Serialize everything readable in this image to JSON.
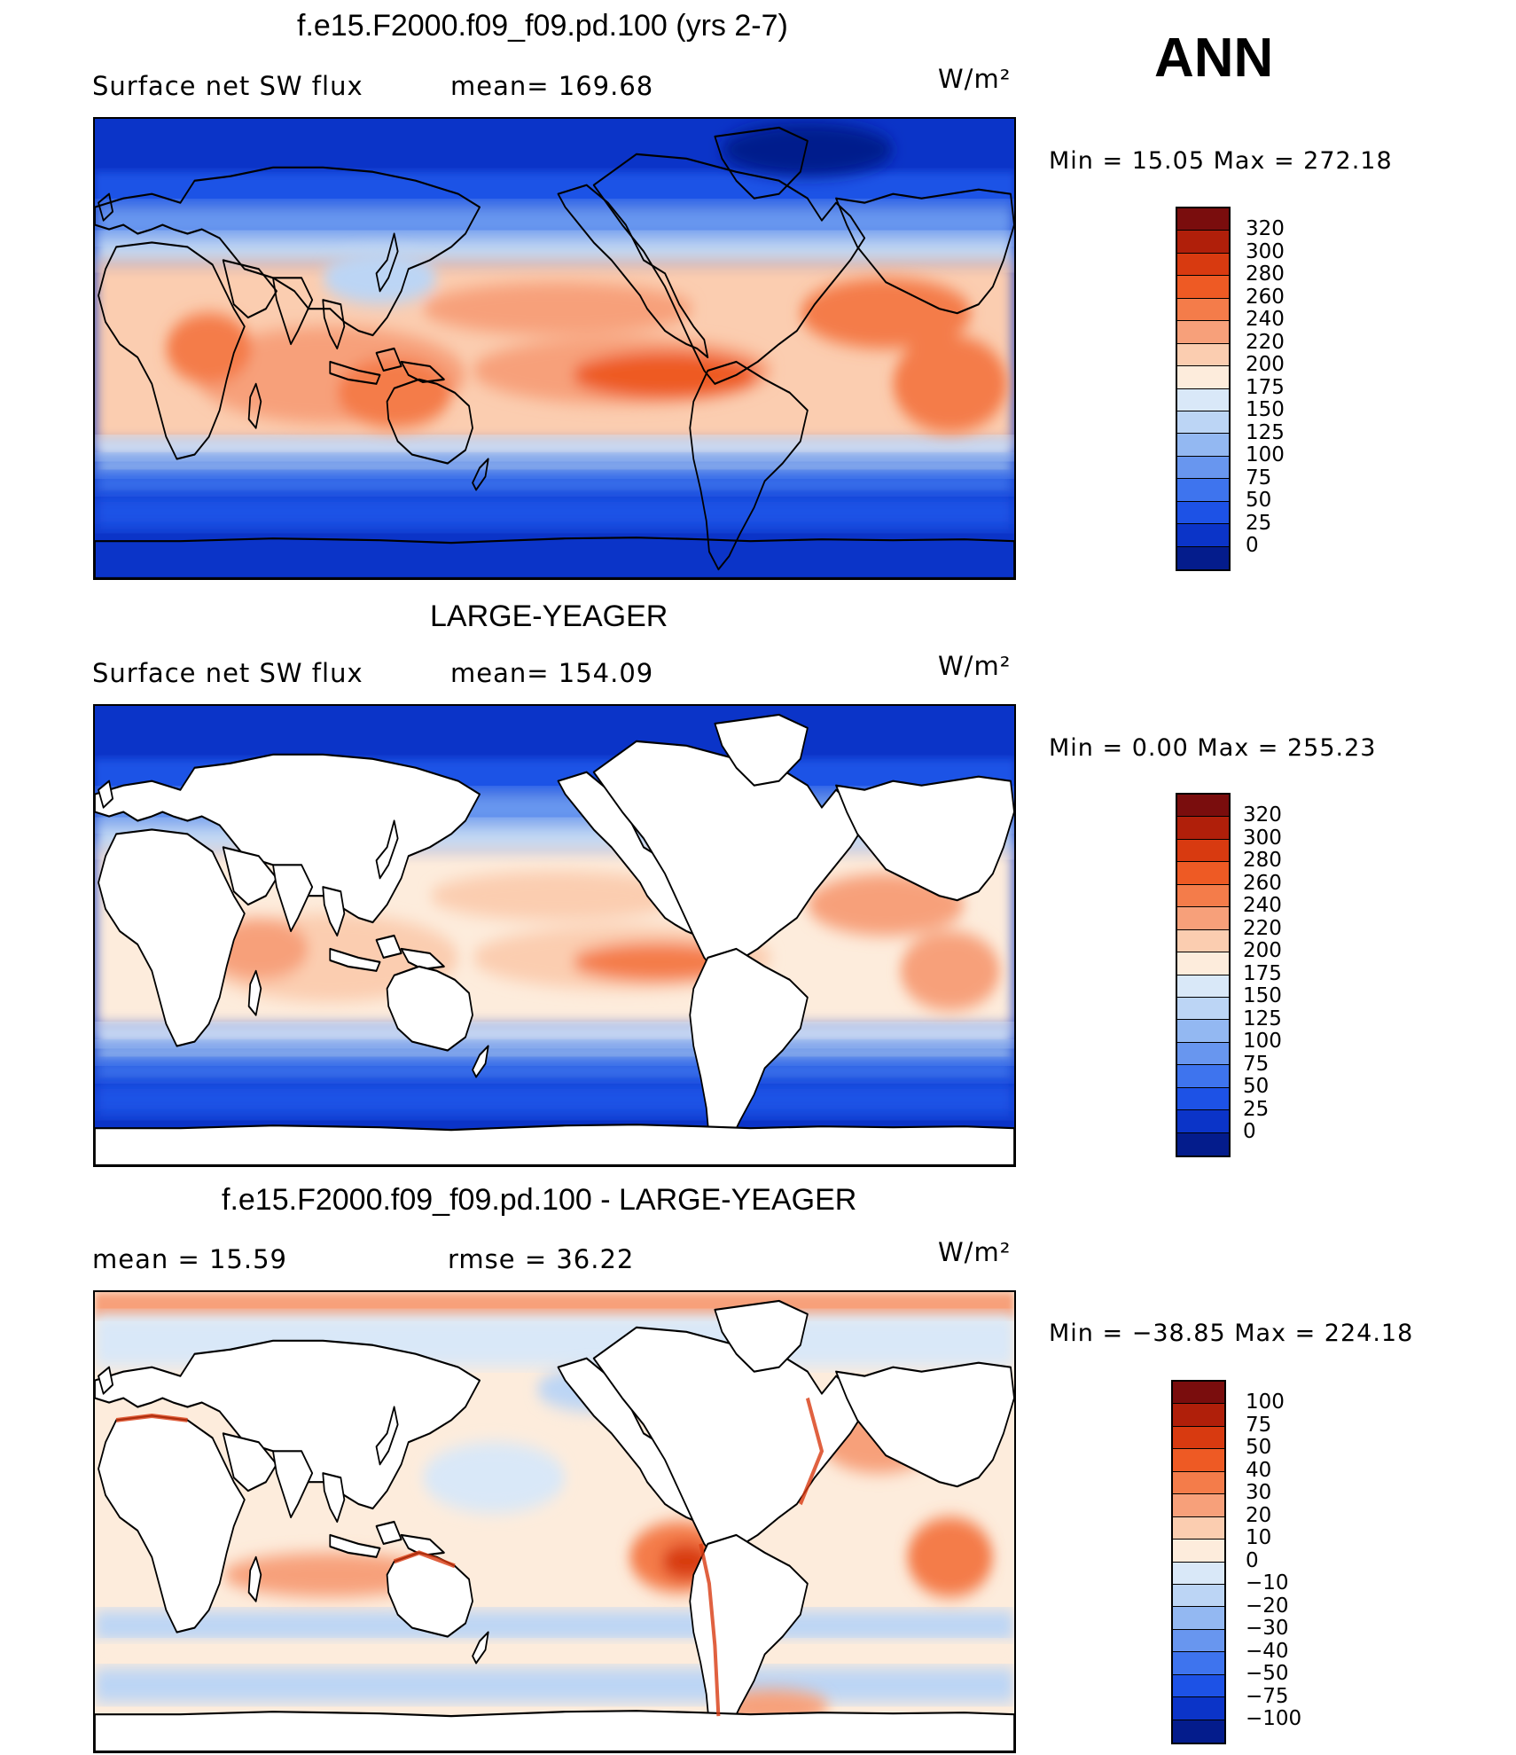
{
  "figure_label": "ANN",
  "panels": [
    {
      "title": "f.e15.F2000.f09_f09.pd.100 (yrs 2-7)",
      "left_label": "Surface net SW flux",
      "stat_label": "mean=  169.68",
      "units": "W/m²",
      "minmax": "Min  =    15.05  Max  =  272.18",
      "colorbar": {
        "labels": [
          "320",
          "300",
          "280",
          "260",
          "240",
          "220",
          "200",
          "175",
          "150",
          "125",
          "100",
          "75",
          "50",
          "25",
          "0"
        ],
        "colors": [
          "#7a0d0d",
          "#b01f0a",
          "#d83a10",
          "#ee5a24",
          "#f47c4a",
          "#f7a07a",
          "#fbcdb0",
          "#fdecdc",
          "#d9e8f8",
          "#bcd5f5",
          "#93b8f2",
          "#6896ef",
          "#3e74ee",
          "#1d52e6",
          "#0b34c8",
          "#041c8c"
        ]
      }
    },
    {
      "title": "LARGE-YEAGER",
      "left_label": "Surface net SW flux",
      "stat_label": "mean=  154.09",
      "units": "W/m²",
      "minmax": "Min  =     0.00  Max  =  255.23",
      "colorbar": {
        "labels": [
          "320",
          "300",
          "280",
          "260",
          "240",
          "220",
          "200",
          "175",
          "150",
          "125",
          "100",
          "75",
          "50",
          "25",
          "0"
        ],
        "colors": [
          "#7a0d0d",
          "#b01f0a",
          "#d83a10",
          "#ee5a24",
          "#f47c4a",
          "#f7a07a",
          "#fbcdb0",
          "#fdecdc",
          "#d9e8f8",
          "#bcd5f5",
          "#93b8f2",
          "#6896ef",
          "#3e74ee",
          "#1d52e6",
          "#0b34c8",
          "#041c8c"
        ]
      }
    },
    {
      "title": "f.e15.F2000.f09_f09.pd.100 - LARGE-YEAGER",
      "left_label": "mean  =    15.59",
      "stat_label": "rmse  =    36.22",
      "units": "W/m²",
      "minmax": "Min  = −38.85  Max  =  224.18",
      "colorbar": {
        "labels": [
          "100",
          "75",
          "50",
          "40",
          "30",
          "20",
          "10",
          "0",
          "−10",
          "−20",
          "−30",
          "−40",
          "−50",
          "−75",
          "−100"
        ],
        "colors": [
          "#7a0d0d",
          "#b01f0a",
          "#d83a10",
          "#ee5a24",
          "#f47c4a",
          "#f7a07a",
          "#fbcdb0",
          "#fdecdc",
          "#d9e8f8",
          "#bcd5f5",
          "#93b8f2",
          "#6896ef",
          "#3e74ee",
          "#1d52e6",
          "#0b34c8",
          "#041c8c"
        ]
      }
    }
  ]
}
